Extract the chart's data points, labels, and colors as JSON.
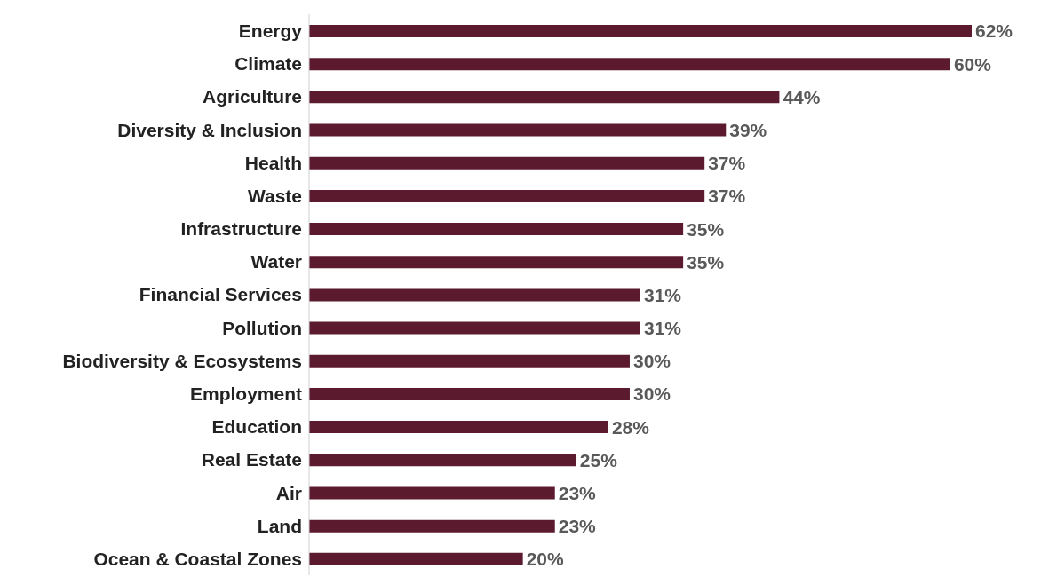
{
  "chart_data": {
    "type": "bar",
    "orientation": "horizontal",
    "categories": [
      "Energy",
      "Climate",
      "Agriculture",
      "Diversity & Inclusion",
      "Health",
      "Waste",
      "Infrastructure",
      "Water",
      "Financial Services",
      "Pollution",
      "Biodiversity & Ecosystems",
      "Employment",
      "Education",
      "Real Estate",
      "Air",
      "Land",
      "Ocean & Coastal Zones"
    ],
    "values": [
      62,
      60,
      44,
      39,
      37,
      37,
      35,
      35,
      31,
      31,
      30,
      30,
      28,
      25,
      23,
      23,
      20
    ],
    "value_labels": [
      "62%",
      "60%",
      "44%",
      "39%",
      "37%",
      "37%",
      "35%",
      "35%",
      "31%",
      "31%",
      "30%",
      "30%",
      "28%",
      "25%",
      "23%",
      "23%",
      "20%"
    ],
    "color": "#5c1a2e",
    "grid": false,
    "legend": false
  }
}
